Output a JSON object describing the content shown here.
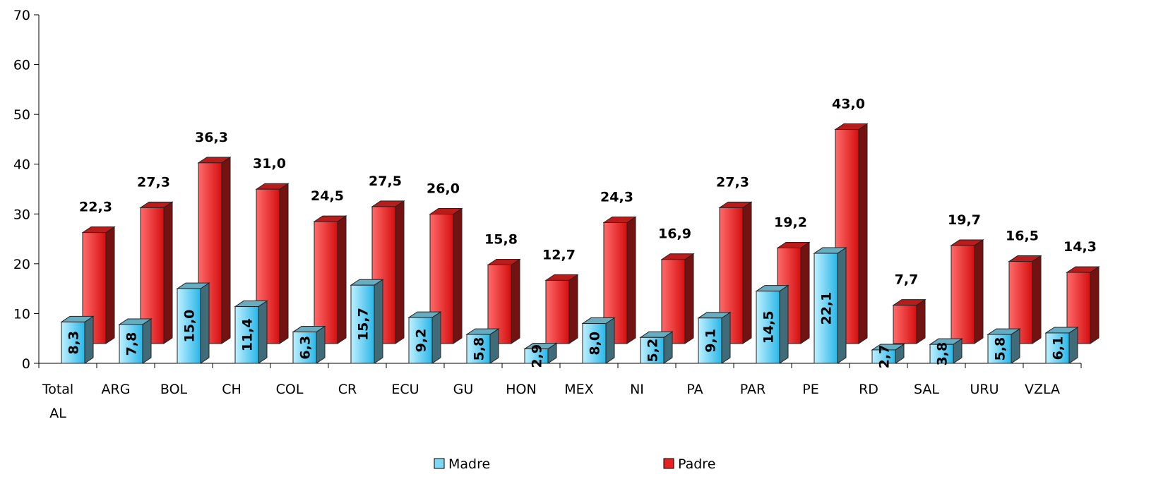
{
  "chart_data": {
    "type": "bar3d",
    "categories": [
      "Total AL",
      "ARG",
      "BOL",
      "CH",
      "COL",
      "CR",
      "ECU",
      "GU",
      "HON",
      "MEX",
      "NI",
      "PA",
      "PAR",
      "PE",
      "RD",
      "SAL",
      "URU",
      "VZLA"
    ],
    "series": [
      {
        "name": "Madre",
        "color": "#7fd8f2",
        "values": [
          8.3,
          7.8,
          15.0,
          11.4,
          6.3,
          15.7,
          9.2,
          5.8,
          2.9,
          8.0,
          5.2,
          9.1,
          14.5,
          22.1,
          2.7,
          3.8,
          5.8,
          6.1
        ],
        "value_labels": [
          "8,3",
          "7,8",
          "15,0",
          "11,4",
          "6,3",
          "15,7",
          "9,2",
          "5,8",
          "2,9",
          "8,0",
          "5,2",
          "9,1",
          "14,5",
          "22,1",
          "2,7",
          "3,8",
          "5,8",
          "6,1"
        ]
      },
      {
        "name": "Padre",
        "color": "#e82222",
        "values": [
          22.3,
          27.3,
          36.3,
          31.0,
          24.5,
          27.5,
          26.0,
          15.8,
          12.7,
          24.3,
          16.9,
          27.3,
          19.2,
          43.0,
          7.7,
          19.7,
          16.5,
          14.3
        ],
        "value_labels": [
          "22,3",
          "27,3",
          "36,3",
          "31,0",
          "24,5",
          "27,5",
          "26,0",
          "15,8",
          "12,7",
          "24,3",
          "16,9",
          "27,3",
          "19,2",
          "43,0",
          "7,7",
          "19,7",
          "16,5",
          "14,3"
        ]
      }
    ],
    "ylim": [
      0,
      70
    ],
    "yticks": [
      0,
      10,
      20,
      30,
      40,
      50,
      60,
      70
    ],
    "legend": "bottom"
  }
}
